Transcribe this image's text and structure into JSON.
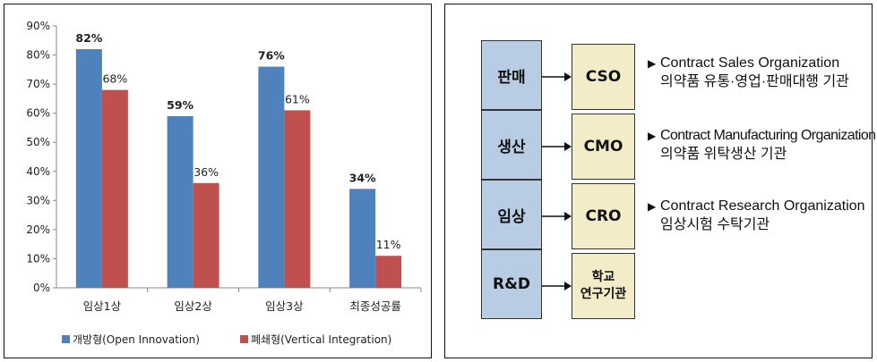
{
  "chart_data": {
    "type": "bar",
    "categories": [
      "임상1상",
      "임상2상",
      "임상3상",
      "최종성공률"
    ],
    "series": [
      {
        "name": "개방형(Open Innovation)",
        "color": "#4f81bd",
        "values": [
          82,
          59,
          76,
          34
        ],
        "labels": [
          "82%",
          "59%",
          "76%",
          "34%"
        ],
        "label_bold": true
      },
      {
        "name": "폐쇄형(Vertical Integration)",
        "color": "#c0504d",
        "values": [
          68,
          36,
          61,
          11
        ],
        "labels": [
          "68%",
          "36%",
          "61%",
          "11%"
        ],
        "label_bold": false
      }
    ],
    "ylim": [
      0,
      90
    ],
    "yticks": [
      "0%",
      "10%",
      "20%",
      "30%",
      "40%",
      "50%",
      "60%",
      "70%",
      "80%",
      "90%"
    ],
    "grid": false,
    "legend": "bottom"
  },
  "diagram": {
    "rows": [
      {
        "left": "판매",
        "right": "CSO",
        "desc_title": "Contract Sales Organization",
        "desc_sub": "의약품 유통·영업·판매대행 기관"
      },
      {
        "left": "생산",
        "right": "CMO",
        "desc_title": "Contract Manufacturing Organization",
        "desc_sub": "의약품 위탁생산 기관"
      },
      {
        "left": "임상",
        "right": "CRO",
        "desc_title": "Contract Research Organization",
        "desc_sub": "임상시험 수탁기관"
      },
      {
        "left": "R&D",
        "right_line1": "학교",
        "right_line2": "연구기관",
        "desc_title": "",
        "desc_sub": ""
      }
    ],
    "bullet_icon": "triangle-right-icon",
    "left_fill": "#b8cce4",
    "right_fill": "#f2ecc9"
  }
}
